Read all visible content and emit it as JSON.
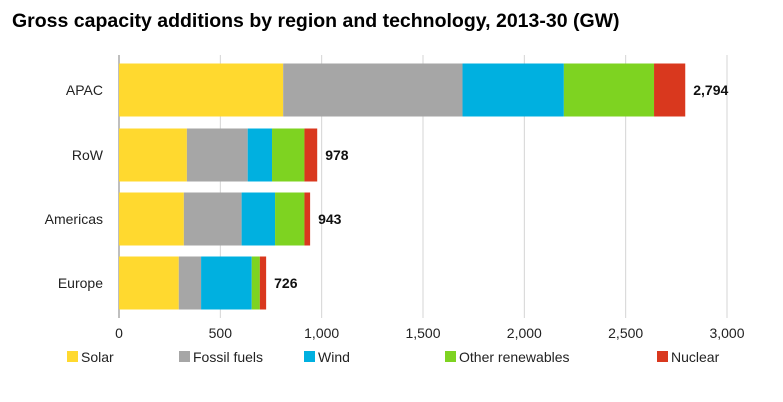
{
  "chart_data": {
    "type": "bar",
    "orientation": "horizontal",
    "stacked": true,
    "title": "Gross capacity additions by region and technology, 2013-30 (GW)",
    "categories": [
      "APAC",
      "RoW",
      "Americas",
      "Europe"
    ],
    "series": [
      {
        "name": "Solar",
        "color": "#ffd92f",
        "values": [
          810,
          335,
          320,
          295
        ]
      },
      {
        "name": "Fossil fuels",
        "color": "#a6a6a6",
        "values": [
          885,
          300,
          285,
          110
        ]
      },
      {
        "name": "Wind",
        "color": "#00b0e0",
        "values": [
          500,
          120,
          165,
          250
        ]
      },
      {
        "name": "Other renewables",
        "color": "#7ed321",
        "values": [
          445,
          160,
          145,
          40
        ]
      },
      {
        "name": "Nuclear",
        "color": "#d9381e",
        "values": [
          154,
          63,
          28,
          31
        ]
      }
    ],
    "totals": [
      "2,794",
      "978",
      "943",
      "726"
    ],
    "xlim": [
      0,
      3000
    ],
    "xticks": [
      0,
      500,
      1000,
      1500,
      2000,
      2500,
      3000
    ],
    "xtick_labels": [
      "0",
      "500",
      "1,000",
      "1,500",
      "2,000",
      "2,500",
      "3,000"
    ],
    "grid": "vertical",
    "legend": "bottom"
  }
}
